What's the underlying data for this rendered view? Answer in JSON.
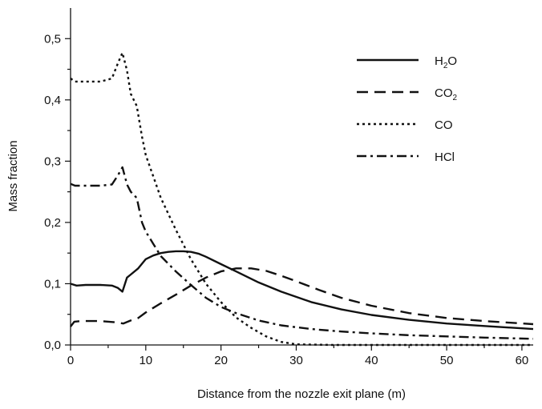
{
  "chart_data": {
    "type": "line",
    "title": "",
    "xlabel": "Distance from the nozzle exit plane (m)",
    "ylabel": "Mass fraction",
    "xlim": [
      0,
      61.5
    ],
    "ylim": [
      0,
      0.55
    ],
    "x_ticks": [
      {
        "value": 0,
        "label": "0"
      },
      {
        "value": 10,
        "label": "10"
      },
      {
        "value": 20,
        "label": "20"
      },
      {
        "value": 30,
        "label": "30"
      },
      {
        "value": 40,
        "label": "40"
      },
      {
        "value": 50,
        "label": "50"
      },
      {
        "value": 60,
        "label": "60"
      }
    ],
    "y_ticks": [
      {
        "value": 0.0,
        "label": "0,0"
      },
      {
        "value": 0.1,
        "label": "0,1"
      },
      {
        "value": 0.2,
        "label": "0,2"
      },
      {
        "value": 0.3,
        "label": "0,3"
      },
      {
        "value": 0.4,
        "label": "0,4"
      },
      {
        "value": 0.5,
        "label": "0,5"
      }
    ],
    "grid": false,
    "legend_position": "top-right",
    "series": [
      {
        "name": "H2O",
        "name_base": "H",
        "name_sub": "2",
        "name_tail": "O",
        "style": "solid",
        "color": "#111111",
        "x": [
          0,
          0.8,
          2,
          4,
          5.5,
          6.3,
          6.9,
          7.5,
          8,
          9,
          10,
          11,
          12,
          13,
          14,
          15,
          16,
          17,
          18,
          20,
          22,
          25,
          28,
          32,
          36,
          40,
          45,
          50,
          55,
          61.5
        ],
        "y": [
          0.1,
          0.097,
          0.098,
          0.098,
          0.097,
          0.093,
          0.087,
          0.11,
          0.115,
          0.125,
          0.14,
          0.146,
          0.15,
          0.152,
          0.153,
          0.153,
          0.152,
          0.149,
          0.144,
          0.132,
          0.12,
          0.102,
          0.087,
          0.07,
          0.058,
          0.049,
          0.041,
          0.035,
          0.031,
          0.026
        ]
      },
      {
        "name": "CO2",
        "name_base": "CO",
        "name_sub": "2",
        "name_tail": "",
        "style": "dashed",
        "color": "#111111",
        "x": [
          0,
          0.5,
          1.5,
          4,
          6,
          7,
          8,
          9,
          10,
          12,
          14,
          16,
          18,
          20,
          22,
          24,
          26,
          28,
          30,
          33,
          36,
          40,
          45,
          50,
          55,
          61.5
        ],
        "y": [
          0.03,
          0.038,
          0.039,
          0.039,
          0.037,
          0.035,
          0.04,
          0.044,
          0.053,
          0.068,
          0.082,
          0.097,
          0.11,
          0.12,
          0.125,
          0.125,
          0.121,
          0.113,
          0.104,
          0.09,
          0.077,
          0.064,
          0.052,
          0.044,
          0.039,
          0.034
        ]
      },
      {
        "name": "CO",
        "name_base": "CO",
        "name_sub": "",
        "name_tail": "",
        "style": "dotted",
        "color": "#111111",
        "x": [
          0,
          0.6,
          2,
          4,
          5.5,
          6.3,
          6.9,
          7.5,
          8,
          8.8,
          9.5,
          10,
          11,
          12,
          14,
          16,
          18,
          20,
          22,
          24,
          26,
          28,
          30,
          35,
          40,
          50,
          61.5
        ],
        "y": [
          0.435,
          0.43,
          0.43,
          0.43,
          0.435,
          0.46,
          0.477,
          0.448,
          0.41,
          0.39,
          0.34,
          0.31,
          0.275,
          0.24,
          0.188,
          0.14,
          0.1,
          0.07,
          0.045,
          0.028,
          0.014,
          0.005,
          0.001,
          0.0,
          0.0,
          0.0,
          0.0
        ]
      },
      {
        "name": "HCl",
        "name_base": "HCl",
        "name_sub": "",
        "name_tail": "",
        "style": "dashdot",
        "color": "#111111",
        "x": [
          0,
          0.6,
          2,
          4,
          5.5,
          6.3,
          6.9,
          7.5,
          8,
          8.8,
          9.5,
          10,
          11,
          12,
          14,
          16,
          18,
          20,
          22,
          25,
          28,
          32,
          36,
          40,
          45,
          50,
          55,
          61.5
        ],
        "y": [
          0.263,
          0.26,
          0.26,
          0.26,
          0.262,
          0.277,
          0.29,
          0.262,
          0.25,
          0.24,
          0.2,
          0.185,
          0.165,
          0.145,
          0.12,
          0.098,
          0.077,
          0.062,
          0.052,
          0.04,
          0.032,
          0.026,
          0.022,
          0.019,
          0.016,
          0.014,
          0.012,
          0.01
        ]
      }
    ]
  }
}
